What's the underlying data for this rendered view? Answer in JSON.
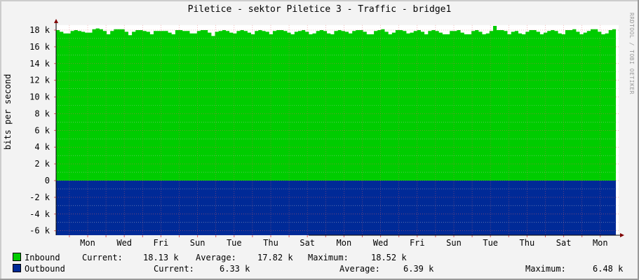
{
  "title": "Piletice - sektor Piletice 3 - Traffic - bridge1",
  "watermark": "RRDTOOL / TOBI OETIKER",
  "colors": {
    "background": "#f3f3f3",
    "plot_background": "#ffffff",
    "inbound": "#00cc00",
    "outbound": "#002a97",
    "major_grid": "#e06060",
    "minor_grid": "#cccccc",
    "axis": "#000000",
    "arrow": "#800000"
  },
  "chart_data": {
    "type": "area",
    "title": "Piletice - sektor Piletice 3 - Traffic - bridge1",
    "xlabel": "",
    "ylabel": "bits per second",
    "ylim": [
      -6500,
      18600
    ],
    "y_ticks": [
      {
        "value": 18000,
        "label": "18 k"
      },
      {
        "value": 16000,
        "label": "16 k"
      },
      {
        "value": 14000,
        "label": "14 k"
      },
      {
        "value": 12000,
        "label": "12 k"
      },
      {
        "value": 10000,
        "label": "10 k"
      },
      {
        "value": 8000,
        "label": "8 k"
      },
      {
        "value": 6000,
        "label": "6 k"
      },
      {
        "value": 4000,
        "label": "4 k"
      },
      {
        "value": 2000,
        "label": "2 k"
      },
      {
        "value": 0,
        "label": "0"
      },
      {
        "value": -2000,
        "label": "-2 k"
      },
      {
        "value": -4000,
        "label": "-4 k"
      },
      {
        "value": -6000,
        "label": "-6 k"
      }
    ],
    "x_ticks": [
      "Mon",
      "Wed",
      "Fri",
      "Sun",
      "Tue",
      "Thu",
      "Sat",
      "Mon",
      "Wed",
      "Fri",
      "Sun",
      "Tue",
      "Thu",
      "Sat",
      "Mon"
    ],
    "grid": true,
    "legend_position": "bottom",
    "series": [
      {
        "name": "Inbound",
        "color": "#00cc00",
        "direction": "positive",
        "current": "18.13 k",
        "average": "17.82 k",
        "maximum": "18.52 k",
        "values": [
          18000,
          17800,
          17600,
          17600,
          17900,
          18000,
          17900,
          17800,
          17700,
          17700,
          18100,
          18200,
          18100,
          17900,
          17500,
          17900,
          18100,
          18100,
          18100,
          17800,
          17400,
          17800,
          18000,
          18000,
          17900,
          17800,
          17500,
          17900,
          17900,
          17900,
          17900,
          17700,
          17500,
          18000,
          18000,
          17900,
          17900,
          17600,
          17600,
          17900,
          18000,
          18000,
          17700,
          17300,
          17800,
          17900,
          18000,
          17900,
          17700,
          17600,
          17900,
          18000,
          17900,
          17700,
          17500,
          17900,
          18000,
          17900,
          17800,
          17500,
          17900,
          18000,
          18000,
          17900,
          17700,
          17500,
          17800,
          17900,
          18000,
          17800,
          17500,
          17600,
          17900,
          18000,
          17900,
          17600,
          17500,
          17900,
          18000,
          17900,
          17800,
          17600,
          17900,
          18000,
          18000,
          17800,
          17500,
          17500,
          17900,
          18000,
          18100,
          17800,
          17500,
          17700,
          18000,
          18000,
          17900,
          17600,
          17700,
          17900,
          18000,
          17800,
          17500,
          17900,
          18000,
          17900,
          17700,
          17500,
          17500,
          17900,
          17900,
          18000,
          17700,
          17500,
          17500,
          17900,
          18000,
          17800,
          17500,
          17600,
          17900,
          18500,
          18000,
          18000,
          17900,
          17500,
          17800,
          17900,
          17600,
          17500,
          17800,
          18000,
          18000,
          17800,
          17500,
          17700,
          17900,
          18000,
          17900,
          17600,
          17500,
          18000,
          18000,
          18100,
          17800,
          17500,
          17700,
          17900,
          18100,
          18100,
          17800,
          17500,
          17600,
          18000,
          18100
        ]
      },
      {
        "name": "Outbound",
        "color": "#002a97",
        "direction": "negative",
        "current": "6.33 k",
        "average": "6.39 k",
        "maximum": "6.48 k",
        "approx_value": -6400
      }
    ]
  },
  "legend": {
    "inbound": {
      "label": "Inbound",
      "current_label": "Current:",
      "current": "18.13 k",
      "average_label": "Average:",
      "average": "17.82 k",
      "maximum_label": "Maximum:",
      "maximum": "18.52 k"
    },
    "outbound": {
      "label": "Outbound",
      "current_label": "Current:",
      "current": "6.33 k",
      "average_label": "Average:",
      "average": "6.39 k",
      "maximum_label": "Maximum:",
      "maximum": "6.48 k"
    }
  }
}
